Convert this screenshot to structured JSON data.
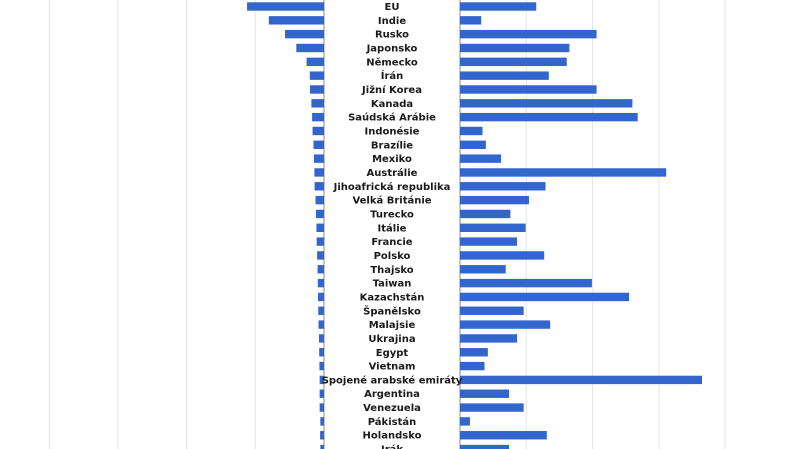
{
  "chart_data": {
    "type": "bar",
    "orientation": "horizontal",
    "layout": "butterfly",
    "categories": [
      "EU",
      "Indie",
      "Rusko",
      "Japonsko",
      "Německo",
      "Írán",
      "Jižní Korea",
      "Kanada",
      "Saúdská Arábie",
      "Indonésie",
      "Brazílie",
      "Mexiko",
      "Austrálie",
      "Jihoafrická republika",
      "Velká Británie",
      "Turecko",
      "Itálie",
      "Francie",
      "Polsko",
      "Thajsko",
      "Taiwan",
      "Kazachstán",
      "Španělsko",
      "Malajsie",
      "Ukrajina",
      "Egypt",
      "Vietnam",
      "Spojené arabské emiráty",
      "Argentina",
      "Venezuela",
      "Pákistán",
      "Holandsko",
      "Irák"
    ],
    "series": [
      {
        "side": "left",
        "values": [
          3.36,
          2.41,
          1.7,
          1.21,
          0.76,
          0.62,
          0.61,
          0.55,
          0.52,
          0.5,
          0.46,
          0.44,
          0.42,
          0.41,
          0.37,
          0.35,
          0.33,
          0.32,
          0.3,
          0.28,
          0.27,
          0.26,
          0.25,
          0.24,
          0.22,
          0.21,
          0.2,
          0.19,
          0.19,
          0.19,
          0.16,
          0.17,
          0.16
        ]
      },
      {
        "side": "right",
        "values": [
          11.5,
          3.2,
          20.6,
          16.5,
          16.1,
          13.4,
          20.6,
          26.0,
          26.8,
          3.4,
          3.9,
          6.2,
          31.1,
          12.9,
          10.4,
          7.6,
          9.9,
          8.6,
          12.7,
          6.9,
          19.9,
          25.5,
          9.6,
          13.6,
          8.6,
          4.2,
          3.7,
          36.5,
          7.4,
          9.6,
          1.5,
          13.1,
          7.4
        ]
      }
    ],
    "left_range": [
      0,
      14
    ],
    "right_range": [
      0,
      40
    ],
    "grid": true,
    "colors": {
      "bar": "#3366cc",
      "grid": "#e4e4e4",
      "axis": "#888888",
      "text": "#1a1a1a"
    }
  }
}
